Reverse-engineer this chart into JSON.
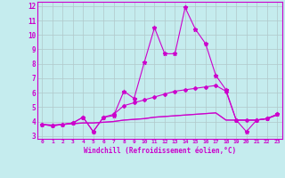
{
  "xlabel": "Windchill (Refroidissement éolien,°C)",
  "xlim": [
    -0.5,
    23.5
  ],
  "ylim": [
    2.8,
    12.3
  ],
  "xticks": [
    0,
    1,
    2,
    3,
    4,
    5,
    6,
    7,
    8,
    9,
    10,
    11,
    12,
    13,
    14,
    15,
    16,
    17,
    18,
    19,
    20,
    21,
    22,
    23
  ],
  "yticks": [
    3,
    4,
    5,
    6,
    7,
    8,
    9,
    10,
    11,
    12
  ],
  "bg_color": "#c5ecee",
  "line_color": "#cc00cc",
  "grid_color": "#b0c8ca",
  "line1": [
    3.8,
    3.7,
    3.8,
    3.9,
    4.3,
    3.3,
    4.3,
    4.4,
    6.1,
    5.6,
    8.1,
    10.5,
    8.7,
    8.7,
    11.9,
    10.4,
    9.4,
    7.2,
    6.2,
    4.1,
    3.3,
    4.1,
    4.2,
    4.5
  ],
  "line2": [
    3.8,
    3.7,
    3.8,
    3.9,
    4.3,
    3.3,
    4.3,
    4.5,
    5.1,
    5.3,
    5.5,
    5.7,
    5.9,
    6.1,
    6.2,
    6.3,
    6.4,
    6.5,
    6.1,
    4.1,
    4.1,
    4.1,
    4.2,
    4.5
  ],
  "line3": [
    3.8,
    3.75,
    3.8,
    3.85,
    3.9,
    3.9,
    3.95,
    4.0,
    4.1,
    4.15,
    4.2,
    4.3,
    4.35,
    4.4,
    4.45,
    4.5,
    4.55,
    4.6,
    4.1,
    4.1,
    4.1,
    4.1,
    4.2,
    4.45
  ],
  "line4": [
    3.8,
    3.75,
    3.8,
    3.85,
    3.9,
    3.9,
    3.95,
    4.0,
    4.1,
    4.15,
    4.2,
    4.3,
    4.35,
    4.4,
    4.45,
    4.5,
    4.55,
    4.6,
    4.1,
    4.1,
    4.1,
    4.1,
    4.2,
    4.45
  ]
}
